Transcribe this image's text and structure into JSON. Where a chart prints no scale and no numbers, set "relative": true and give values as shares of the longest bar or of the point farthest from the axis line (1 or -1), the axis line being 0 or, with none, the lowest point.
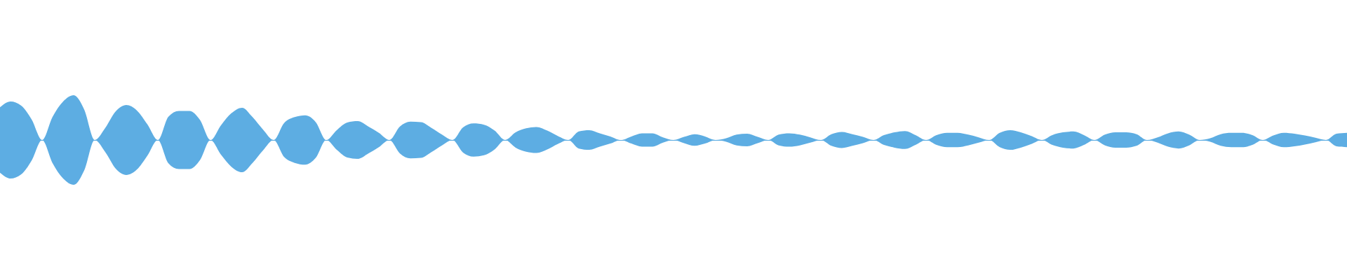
{
  "chart_data": {
    "type": "area",
    "relative": true,
    "categories": [
      null,
      null,
      null,
      null,
      null,
      null,
      null,
      null,
      null,
      null,
      null,
      null,
      null,
      null,
      null,
      null,
      null,
      null,
      null,
      null,
      null,
      null,
      null,
      null,
      null,
      null,
      null,
      null,
      null,
      null,
      null,
      null,
      null,
      null,
      null,
      null,
      null,
      null,
      null,
      null,
      null,
      null,
      null,
      null,
      null,
      null,
      null,
      null,
      null,
      null,
      null,
      null,
      null,
      null,
      null,
      null,
      null,
      null,
      null,
      null,
      null,
      null,
      null,
      null,
      null,
      null,
      null,
      null,
      null,
      null,
      null,
      null,
      null,
      null,
      null,
      null,
      null,
      null,
      null,
      null,
      null,
      null,
      null,
      null,
      null,
      null,
      null,
      null,
      null,
      null,
      null,
      null,
      null,
      null,
      null,
      null,
      null,
      null,
      null,
      null,
      null,
      null,
      null,
      null,
      null,
      null,
      null,
      null,
      null,
      null,
      null,
      null,
      null,
      null,
      null,
      null,
      null,
      null,
      null,
      null,
      null,
      null,
      null,
      null,
      null,
      null,
      null,
      null,
      null
    ],
    "series": [
      {
        "color": "#5dade2",
        "values": [
          0.73,
          0.86,
          0.77,
          0.46,
          0,
          0.52,
          0.86,
          1,
          0.68,
          0,
          0.27,
          0.64,
          0.78,
          0.66,
          0.35,
          0,
          0.52,
          0.65,
          0.65,
          0.45,
          0,
          0.33,
          0.6,
          0.72,
          0.51,
          0.23,
          0,
          0.38,
          0.51,
          0.55,
          0.4,
          0,
          0.22,
          0.39,
          0.42,
          0.3,
          0.16,
          0,
          0.3,
          0.41,
          0.4,
          0.27,
          0.12,
          0,
          0.28,
          0.37,
          0.34,
          0.21,
          0,
          0.17,
          0.26,
          0.29,
          0.21,
          0.09,
          0,
          0.19,
          0.22,
          0.15,
          0.08,
          0,
          0.08,
          0.15,
          0.15,
          0.06,
          0,
          0.07,
          0.13,
          0.08,
          0,
          0.04,
          0.12,
          0.14,
          0.07,
          0,
          0.12,
          0.15,
          0.12,
          0.06,
          0,
          0.13,
          0.18,
          0.13,
          0.07,
          0,
          0.11,
          0.17,
          0.2,
          0.11,
          0,
          0.11,
          0.16,
          0.16,
          0.12,
          0.06,
          0,
          0.16,
          0.22,
          0.17,
          0.09,
          0,
          0.11,
          0.17,
          0.19,
          0.11,
          0,
          0.12,
          0.17,
          0.17,
          0.13,
          0,
          0.06,
          0.15,
          0.19,
          0.12,
          0,
          0.04,
          0.13,
          0.16,
          0.16,
          0.11,
          0,
          0.1,
          0.16,
          0.14,
          0.1,
          0.05,
          0,
          0.14,
          0.16
        ]
      },
      {
        "color": "#5dade3",
        "values": [
          -0.73,
          -0.86,
          -0.77,
          -0.46,
          0,
          -0.52,
          -0.86,
          -1,
          -0.68,
          0,
          -0.27,
          -0.64,
          -0.78,
          -0.66,
          -0.35,
          0,
          -0.52,
          -0.65,
          -0.65,
          -0.45,
          0,
          -0.33,
          -0.6,
          -0.72,
          -0.51,
          -0.23,
          0,
          -0.38,
          -0.51,
          -0.55,
          -0.4,
          0,
          -0.22,
          -0.39,
          -0.42,
          -0.3,
          -0.16,
          0,
          -0.3,
          -0.41,
          -0.4,
          -0.27,
          -0.12,
          0,
          -0.28,
          -0.37,
          -0.34,
          -0.21,
          0,
          -0.17,
          -0.26,
          -0.29,
          -0.21,
          -0.09,
          0,
          -0.19,
          -0.22,
          -0.15,
          -0.08,
          0,
          -0.08,
          -0.15,
          -0.15,
          -0.06,
          0,
          -0.07,
          -0.13,
          -0.08,
          0,
          -0.04,
          -0.12,
          -0.14,
          -0.07,
          0,
          -0.12,
          -0.15,
          -0.12,
          -0.06,
          0,
          -0.13,
          -0.18,
          -0.13,
          -0.07,
          0,
          -0.11,
          -0.17,
          -0.2,
          -0.11,
          0,
          -0.11,
          -0.16,
          -0.16,
          -0.12,
          -0.06,
          0,
          -0.16,
          -0.22,
          -0.17,
          -0.09,
          0,
          -0.11,
          -0.17,
          -0.19,
          -0.11,
          0,
          -0.12,
          -0.17,
          -0.17,
          -0.13,
          0,
          -0.06,
          -0.15,
          -0.19,
          -0.12,
          0,
          -0.04,
          -0.13,
          -0.16,
          -0.16,
          -0.11,
          0,
          -0.1,
          -0.16,
          -0.14,
          -0.1,
          -0.05,
          0,
          -0.14,
          -0.16
        ]
      }
    ],
    "ref_lines": [
      {
        "axis": "y",
        "value": 0,
        "color": "#5dade2"
      }
    ]
  }
}
